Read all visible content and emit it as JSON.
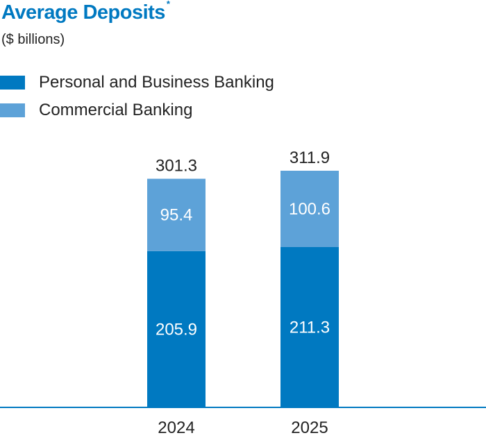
{
  "colors": {
    "primary": "#0079C1",
    "secondary": "#5DA2D8",
    "title": "#0079C1",
    "axis": "#0079C1"
  },
  "chart_data": {
    "type": "bar",
    "stacked": true,
    "title": "Average Deposits",
    "title_mark": "*",
    "subtitle": "($ billions)",
    "categories": [
      "2024",
      "2025"
    ],
    "series": [
      {
        "name": "Personal and Business Banking",
        "values": [
          205.9,
          211.3
        ],
        "color": "#0079C1"
      },
      {
        "name": "Commercial Banking",
        "values": [
          95.4,
          100.6
        ],
        "color": "#5DA2D8"
      }
    ],
    "totals": [
      301.3,
      311.9
    ],
    "ylim": [
      0,
      311.9
    ],
    "legend_position": "top-left",
    "grid": false
  }
}
